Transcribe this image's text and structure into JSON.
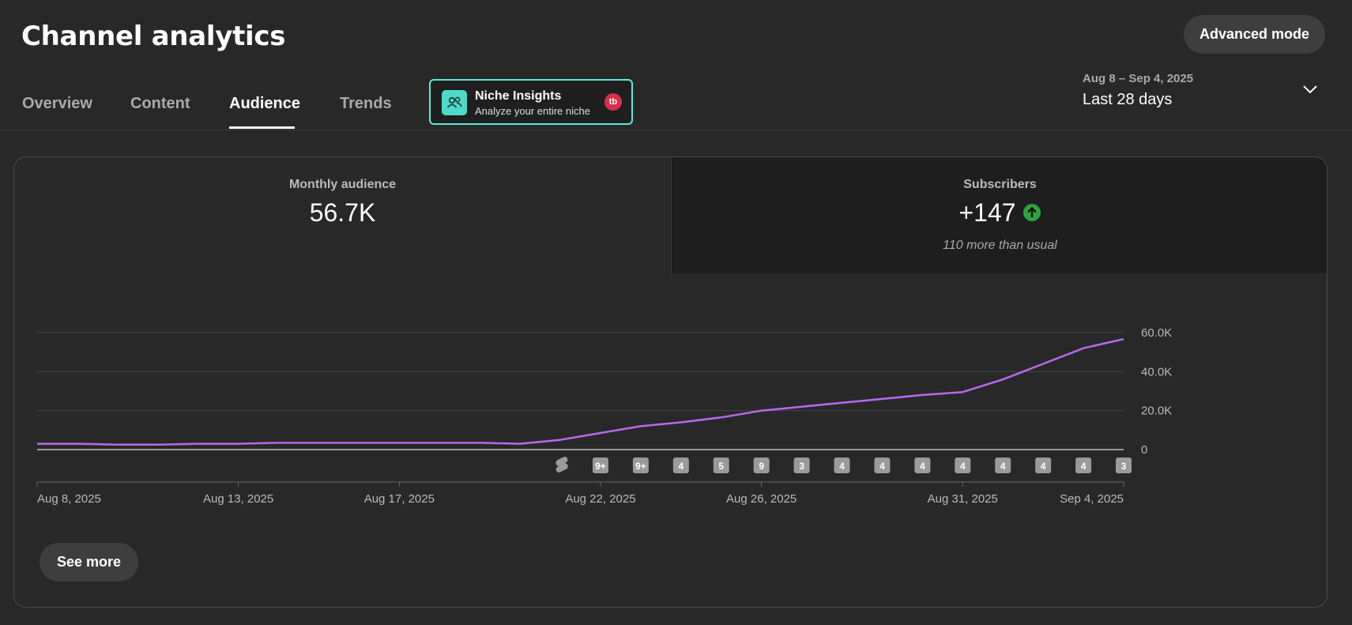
{
  "header": {
    "title": "Channel analytics",
    "advanced_label": "Advanced mode"
  },
  "tabs": [
    {
      "label": "Overview",
      "active": false
    },
    {
      "label": "Content",
      "active": false
    },
    {
      "label": "Audience",
      "active": true
    },
    {
      "label": "Trends",
      "active": false
    }
  ],
  "niche": {
    "title": "Niche Insights",
    "subtitle": "Analyze your entire niche",
    "badge": "tb",
    "icon": "people-icon",
    "border_color": "#5ee9d6"
  },
  "date": {
    "range": "Aug 8 – Sep 4, 2025",
    "label": "Last 28 days"
  },
  "metrics": [
    {
      "label": "Monthly audience",
      "value": "56.7K"
    },
    {
      "label": "Subscribers",
      "value": "+147",
      "note": "110 more than usual",
      "trend_icon": "arrow-up-icon"
    }
  ],
  "chart_data": {
    "type": "line",
    "line_color": "#b769ef",
    "y_ticks": [
      "60.0K",
      "40.0K",
      "20.0K",
      "0"
    ],
    "ylim": [
      0,
      60000
    ],
    "x_labels": [
      "Aug 8, 2025",
      "Aug 13, 2025",
      "Aug 17, 2025",
      "Aug 22, 2025",
      "Aug 26, 2025",
      "Aug 31, 2025",
      "Sep 4, 2025"
    ],
    "x_label_days": [
      0,
      5,
      9,
      14,
      18,
      23,
      27
    ],
    "series": [
      {
        "days": [
          0,
          1,
          2,
          3,
          4,
          5,
          6,
          7,
          8,
          9,
          10,
          11,
          12,
          13,
          14,
          15,
          16,
          17,
          18,
          19,
          20,
          21,
          22,
          23,
          24,
          25,
          26,
          27
        ],
        "values": [
          3000,
          3000,
          2500,
          2500,
          3000,
          3000,
          3500,
          3500,
          3500,
          3500,
          3500,
          3500,
          3000,
          5000,
          8500,
          12000,
          14000,
          16500,
          20000,
          22000,
          24000,
          26000,
          28000,
          29500,
          36000,
          44000,
          52000,
          56700
        ]
      }
    ],
    "upload_markers": [
      {
        "day": 13,
        "label": "",
        "type": "shorts"
      },
      {
        "day": 14,
        "label": "9+"
      },
      {
        "day": 15,
        "label": "9+"
      },
      {
        "day": 16,
        "label": "4"
      },
      {
        "day": 17,
        "label": "5"
      },
      {
        "day": 18,
        "label": "9"
      },
      {
        "day": 19,
        "label": "3"
      },
      {
        "day": 20,
        "label": "4"
      },
      {
        "day": 21,
        "label": "4"
      },
      {
        "day": 22,
        "label": "4"
      },
      {
        "day": 23,
        "label": "4"
      },
      {
        "day": 24,
        "label": "4"
      },
      {
        "day": 25,
        "label": "4"
      },
      {
        "day": 26,
        "label": "4"
      },
      {
        "day": 27,
        "label": "3"
      }
    ]
  },
  "see_more_label": "See more"
}
